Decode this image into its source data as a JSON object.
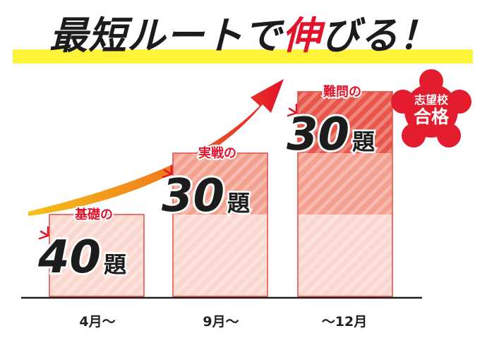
{
  "header": {
    "title_part1": "最短ルートで",
    "title_accent": "伸",
    "title_part2": "びる！"
  },
  "badge": {
    "line1": "志望校",
    "line2": "合格"
  },
  "colors": {
    "accent_red": "#e3122b",
    "seal_red": "#e31c2e",
    "bar_light": "#fbd8cf",
    "bar_mid": "#f2a18f",
    "bar_dark": "#e8564b",
    "bar_border": "#e24a45",
    "headline_underline": "#fff23a",
    "label_red": "#e3122b",
    "arrow_start": "#f6c21a",
    "arrow_end": "#e3122b"
  },
  "chart_data": {
    "type": "bar",
    "stacked": true,
    "categories": [
      "4月〜",
      "9月〜",
      "〜12月"
    ],
    "series": [
      {
        "name": "基礎",
        "values": [
          40,
          40,
          40
        ]
      },
      {
        "name": "実戦",
        "values": [
          0,
          30,
          30
        ]
      },
      {
        "name": "難問",
        "values": [
          0,
          0,
          30
        ]
      }
    ],
    "annotations": [
      {
        "category": "4月〜",
        "label": "基礎の",
        "count": "40",
        "unit": "題"
      },
      {
        "category": "9月〜",
        "label": "実戦の",
        "count": "30",
        "unit": "題"
      },
      {
        "category": "〜12月",
        "label": "難問の",
        "count": "30",
        "unit": "題"
      }
    ],
    "ylim": [
      0,
      100
    ],
    "grid": false,
    "legend": "none"
  }
}
